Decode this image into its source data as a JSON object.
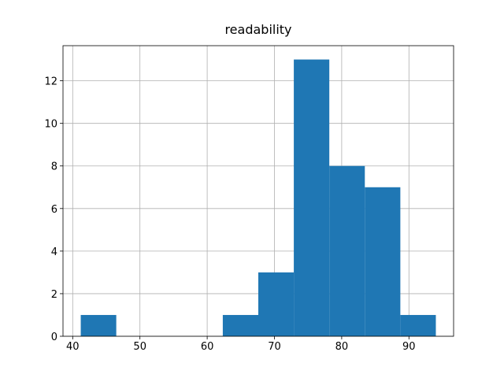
{
  "chart_data": {
    "type": "histogram",
    "title": "readability",
    "bins": [
      41.2,
      46.48,
      51.76,
      57.04,
      62.32,
      67.6,
      72.88,
      78.16,
      83.44,
      88.72,
      94.0
    ],
    "values": [
      1,
      0,
      0,
      0,
      1,
      3,
      13,
      8,
      7,
      1
    ],
    "color": "#1f77b4",
    "xlim": [
      38.56,
      96.64
    ],
    "xticks": [
      40,
      50,
      60,
      70,
      80,
      90
    ],
    "ylim": [
      0,
      13.65
    ],
    "yticks": [
      0,
      2,
      4,
      6,
      8,
      10,
      12
    ],
    "grid": true
  }
}
